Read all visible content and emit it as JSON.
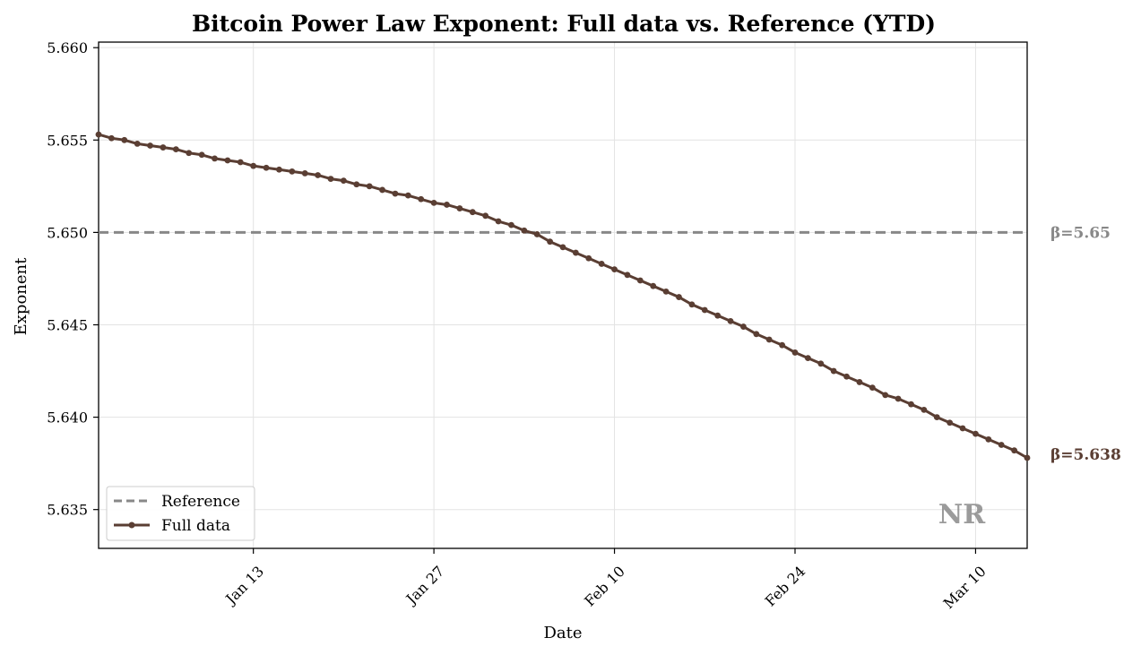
{
  "chart_data": {
    "type": "line",
    "title": "Bitcoin Power Law Exponent: Full data vs. Reference (YTD)",
    "xlabel": "Date",
    "ylabel": "Exponent",
    "x_start": "2025-01-01",
    "xlim": [
      "2025-01-01",
      "2025-03-14"
    ],
    "ylim": [
      5.6329,
      5.6603
    ],
    "x_ticks": [
      {
        "date": "2025-01-13",
        "label": "Jan 13"
      },
      {
        "date": "2025-01-27",
        "label": "Jan 27"
      },
      {
        "date": "2025-02-10",
        "label": "Feb 10"
      },
      {
        "date": "2025-02-24",
        "label": "Feb 24"
      },
      {
        "date": "2025-03-10",
        "label": "Mar 10"
      }
    ],
    "y_ticks": [
      {
        "value": 5.635,
        "label": "5.635"
      },
      {
        "value": 5.64,
        "label": "5.640"
      },
      {
        "value": 5.645,
        "label": "5.645"
      },
      {
        "value": 5.65,
        "label": "5.650"
      },
      {
        "value": 5.655,
        "label": "5.655"
      },
      {
        "value": 5.66,
        "label": "5.660"
      }
    ],
    "grid": true,
    "legend_position": "bottom-left",
    "legend": [
      {
        "label": "Reference",
        "style": "dashed",
        "color": "#888888"
      },
      {
        "label": "Full data",
        "style": "line-marker",
        "color": "#5a3e33"
      }
    ],
    "series": [
      {
        "name": "Full data",
        "color": "#5a3e33",
        "values": [
          5.6553,
          5.6551,
          5.655,
          5.6548,
          5.6547,
          5.6546,
          5.6545,
          5.6543,
          5.6542,
          5.654,
          5.6539,
          5.6538,
          5.6536,
          5.6535,
          5.6534,
          5.6533,
          5.6532,
          5.6531,
          5.6529,
          5.6528,
          5.6526,
          5.6525,
          5.6523,
          5.6521,
          5.652,
          5.6518,
          5.6516,
          5.6515,
          5.6513,
          5.6511,
          5.6509,
          5.6506,
          5.6504,
          5.6501,
          5.6499,
          5.6495,
          5.6492,
          5.6489,
          5.6486,
          5.6483,
          5.648,
          5.6477,
          5.6474,
          5.6471,
          5.6468,
          5.6465,
          5.6461,
          5.6458,
          5.6455,
          5.6452,
          5.6449,
          5.6445,
          5.6442,
          5.6439,
          5.6435,
          5.6432,
          5.6429,
          5.6425,
          5.6422,
          5.6419,
          5.6416,
          5.6412,
          5.641,
          5.6407,
          5.6404,
          5.64,
          5.6397,
          5.6394,
          5.6391,
          5.6388,
          5.6385,
          5.6382,
          5.6378
        ]
      },
      {
        "name": "Reference",
        "color": "#888888",
        "style": "dashed",
        "constant": 5.65
      }
    ],
    "annotations": [
      {
        "text": "β=5.65",
        "color": "#888888",
        "value": 5.65
      },
      {
        "text": "β=5.638",
        "color": "#5a3e33",
        "value": 5.638
      }
    ],
    "watermark": "NR"
  }
}
